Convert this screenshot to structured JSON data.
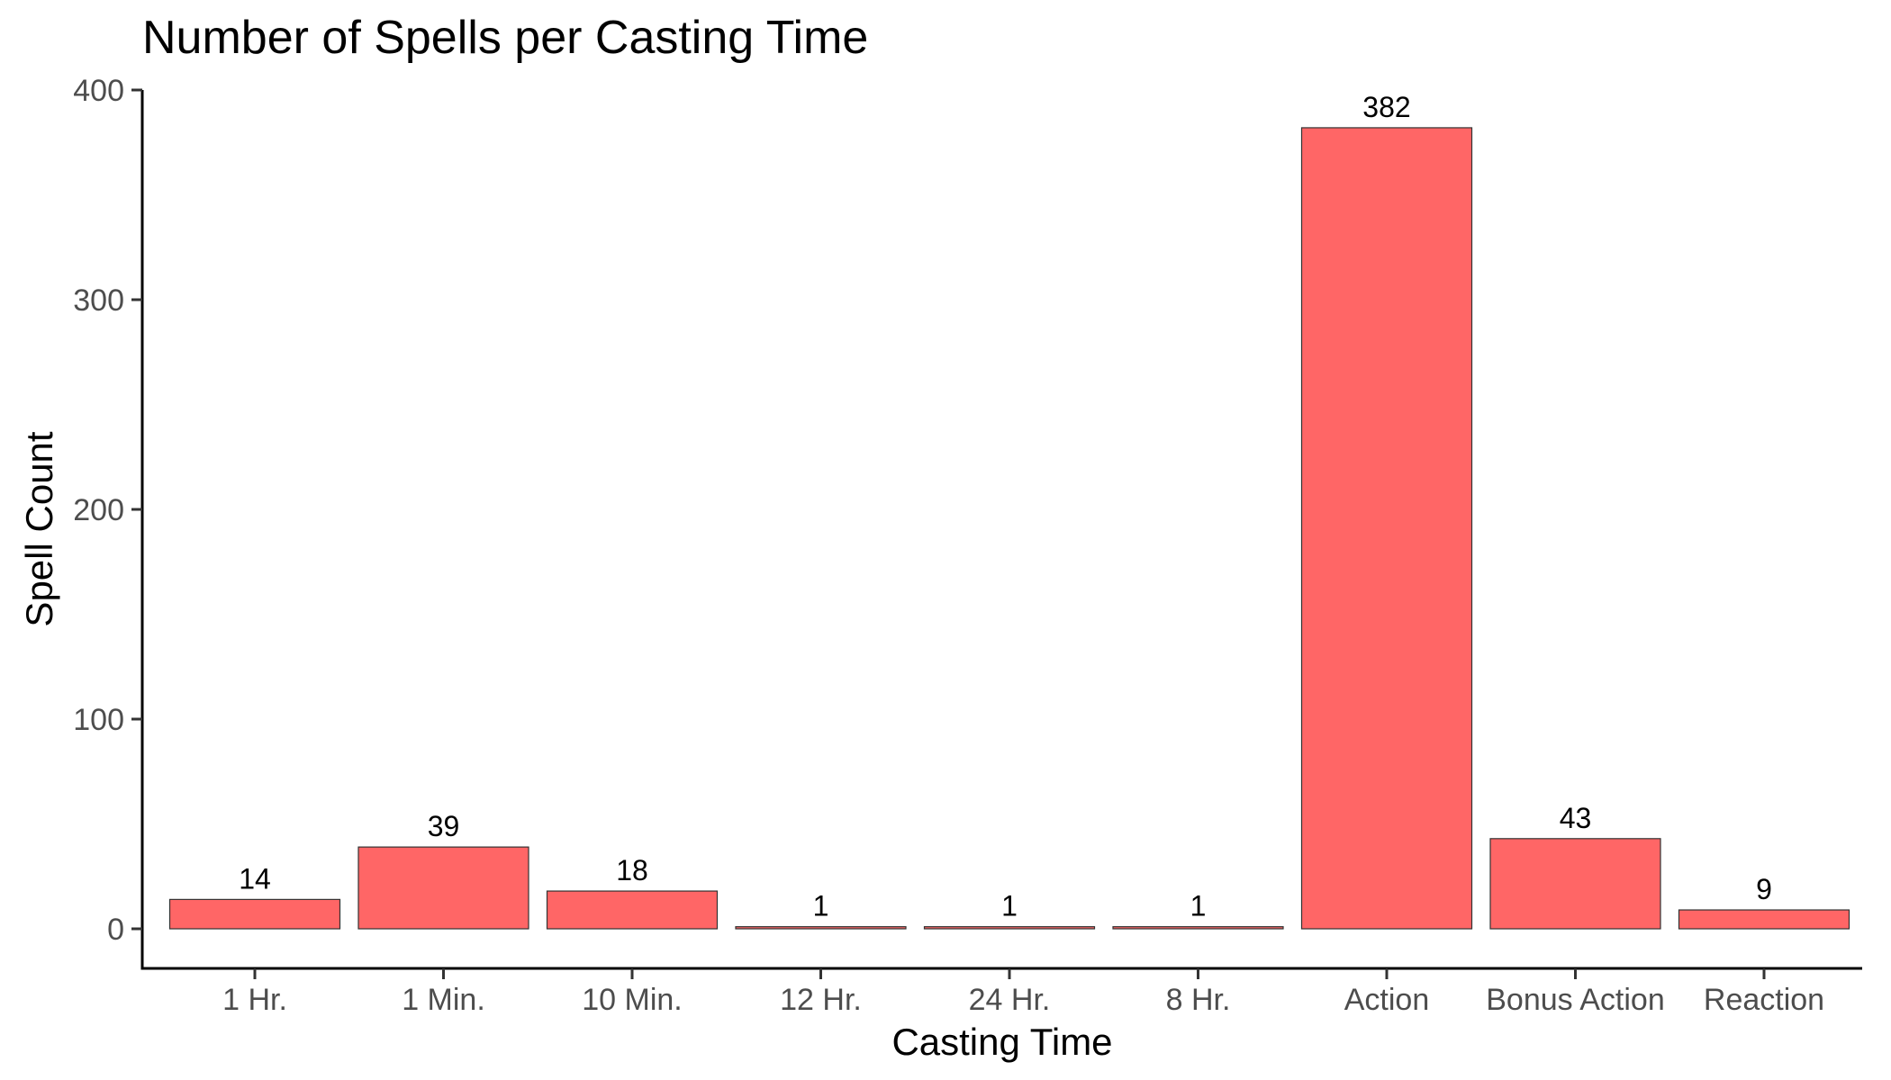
{
  "chart_data": {
    "type": "bar",
    "title": "Number of Spells per Casting Time",
    "xlabel": "Casting Time",
    "ylabel": "Spell Count",
    "categories": [
      "1 Hr.",
      "1 Min.",
      "10 Min.",
      "12 Hr.",
      "24 Hr.",
      "8 Hr.",
      "Action",
      "Bonus Action",
      "Reaction"
    ],
    "values": [
      14,
      39,
      18,
      1,
      1,
      1,
      382,
      43,
      9
    ],
    "ylim": [
      0,
      400
    ],
    "yticks": [
      0,
      100,
      200,
      300,
      400
    ],
    "grid": false,
    "legend": "none",
    "bar_color": "#FF6666"
  }
}
